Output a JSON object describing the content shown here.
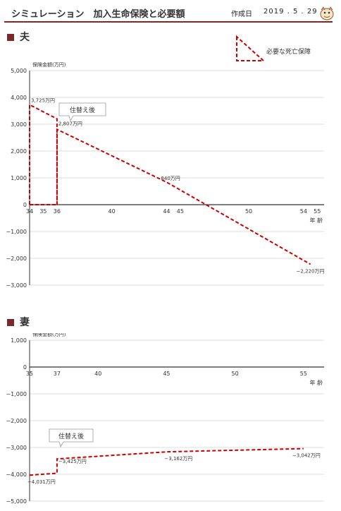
{
  "header": {
    "title": "シミュレーション　加入生命保険と必要額",
    "date_label": "作成日",
    "date_value": "2019 . 5 . 29"
  },
  "legend": {
    "label": "必要な死亡保障"
  },
  "colors": {
    "accent": "#7a2a2a",
    "line": "#cc0000",
    "grid": "#bbbbbb"
  },
  "icons": {
    "mascot": "mascot-icon"
  },
  "chart_data": [
    {
      "type": "line",
      "section_title": "夫",
      "ylabel": "保険金額(万円)",
      "xunit": "年 齢",
      "ylim": [
        -3000,
        5000
      ],
      "yticks": [
        5000,
        4000,
        3000,
        2000,
        1000,
        0,
        -1000,
        -2000,
        -3000
      ],
      "ytick_labels": [
        "5,000",
        "4,000",
        "3,000",
        "2,000",
        "1,000",
        "0",
        "−1,000",
        "−2,000",
        "−3,000"
      ],
      "xlim": [
        34,
        55.5
      ],
      "xticks": [
        34,
        35,
        36,
        40,
        44,
        45,
        50,
        54,
        55
      ],
      "grid": true,
      "series": [
        {
          "points": [
            [
              34,
              0
            ],
            [
              34,
              3725
            ],
            [
              36,
              3200
            ],
            [
              36,
              0
            ]
          ]
        },
        {
          "points": [
            [
              36,
              0
            ],
            [
              36,
              2807
            ],
            [
              44,
              840
            ],
            [
              54.5,
              -2220
            ]
          ]
        }
      ],
      "baseline": [
        [
          34,
          0
        ],
        [
          36,
          0
        ]
      ],
      "data_labels": [
        {
          "x": 34,
          "y": 3725,
          "text": "3,725万円"
        },
        {
          "x": 36,
          "y": 2807,
          "text": "2,807万円"
        },
        {
          "x": 44,
          "y": 840,
          "text": "840万円"
        },
        {
          "x": 54.5,
          "y": -2220,
          "text": "−2,220万円"
        }
      ],
      "annotation": {
        "text": "住替え後"
      }
    },
    {
      "type": "line",
      "section_title": "妻",
      "ylabel": "保険金額(万円)",
      "xunit": "年 齢",
      "ylim": [
        -5000,
        1000
      ],
      "yticks": [
        1000,
        0,
        -1000,
        -2000,
        -3000,
        -4000,
        -5000
      ],
      "ytick_labels": [
        "1,000",
        "0",
        "−1,000",
        "−2,000",
        "−3,000",
        "−4,000",
        "−5,000"
      ],
      "xlim": [
        35,
        56.5
      ],
      "xticks": [
        35,
        37,
        40,
        45,
        50,
        55
      ],
      "grid": true,
      "series": [
        {
          "points": [
            [
              35,
              -4031
            ],
            [
              37,
              -3960
            ],
            [
              37,
              -3425
            ],
            [
              45,
              -3162
            ],
            [
              55,
              -3042
            ]
          ]
        }
      ],
      "data_labels": [
        {
          "x": 37,
          "y": -4031,
          "text": "−4,031万円"
        },
        {
          "x": 37,
          "y": -3425,
          "text": "−3,425万円"
        },
        {
          "x": 45,
          "y": -3162,
          "text": "−3,162万円"
        },
        {
          "x": 55,
          "y": -3042,
          "text": "−3,042万円"
        }
      ],
      "annotation": {
        "text": "住替え後"
      }
    }
  ]
}
